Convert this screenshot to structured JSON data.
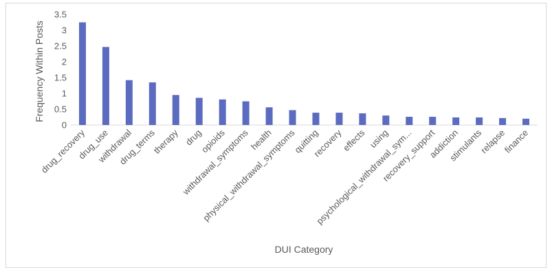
{
  "chart_data": {
    "type": "bar",
    "title": "",
    "xlabel": "DUI Category",
    "ylabel": "Frequency Within Posts",
    "ylim": [
      0,
      3.5
    ],
    "yticks": [
      "0",
      "0.5",
      "1",
      "1.5",
      "2",
      "2.5",
      "3",
      "3.5"
    ],
    "grid": false,
    "bar_color": "#5b6bc0",
    "categories": [
      "drug_recovery",
      "drug_use",
      "withdrawal",
      "drug_terms",
      "therapy",
      "drug",
      "opioids",
      "withdrawal_symptoms",
      "health",
      "physical_withdrawal_symptoms",
      "quitting",
      "recovery",
      "effects",
      "using",
      "psychological_withdrawal_sym...",
      "recovery_support",
      "addiction",
      "stimulants",
      "relapse",
      "finance"
    ],
    "values": [
      3.25,
      2.47,
      1.42,
      1.35,
      0.95,
      0.86,
      0.81,
      0.75,
      0.56,
      0.47,
      0.39,
      0.39,
      0.37,
      0.3,
      0.26,
      0.26,
      0.24,
      0.24,
      0.22,
      0.2
    ]
  }
}
